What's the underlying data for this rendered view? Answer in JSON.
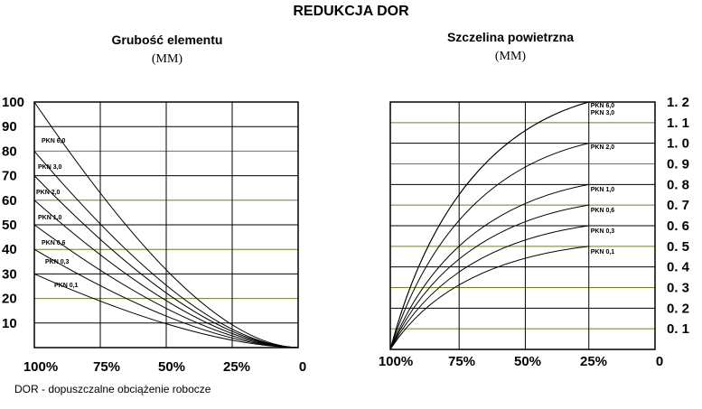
{
  "title": "REDUKCJA DOR",
  "caption": "DOR - dopuszczalne obciążenie robocze",
  "chart_data": [
    {
      "type": "line",
      "title": "Grubość elementu",
      "unit": "(MM)",
      "x_ticks": [
        "100%",
        "75%",
        "50%",
        "25%",
        "0"
      ],
      "y_ticks": [
        "100",
        "90",
        "80",
        "70",
        "60",
        "50",
        "40",
        "30",
        "20",
        "10"
      ],
      "xlim": [
        100,
        0
      ],
      "ylim": [
        0,
        100
      ],
      "grid": true,
      "series": [
        {
          "name": "PKN 6,0",
          "x": [
            100,
            0
          ],
          "y": [
            100,
            0
          ]
        },
        {
          "name": "PKN 3,0",
          "x": [
            100,
            0
          ],
          "y": [
            80,
            0
          ]
        },
        {
          "name": "PKN 2,0",
          "x": [
            100,
            0
          ],
          "y": [
            70,
            0
          ]
        },
        {
          "name": "PKN 1,0",
          "x": [
            100,
            0
          ],
          "y": [
            60,
            0
          ]
        },
        {
          "name": "PKN 0,6",
          "x": [
            100,
            0
          ],
          "y": [
            50,
            0
          ]
        },
        {
          "name": "PKN 0,3",
          "x": [
            100,
            0
          ],
          "y": [
            40,
            0
          ]
        },
        {
          "name": "PKN 0,1",
          "x": [
            100,
            0
          ],
          "y": [
            30,
            0
          ]
        }
      ]
    },
    {
      "type": "line",
      "title": "Szczelina powietrzna",
      "unit": "(MM)",
      "x_ticks": [
        "100%",
        "75%",
        "50%",
        "25%",
        "0"
      ],
      "y_ticks": [
        "1. 2",
        "1. 1",
        "1. 0",
        "0. 9",
        "0. 8",
        "0. 7",
        "0. 6",
        "0. 5",
        "0. 4",
        "0. 3",
        "0. 2",
        "0. 1"
      ],
      "xlim": [
        100,
        0
      ],
      "ylim": [
        0,
        1.2
      ],
      "grid": true,
      "series": [
        {
          "name": "PKN 6,0",
          "x": [
            100,
            25
          ],
          "y": [
            0,
            1.2
          ]
        },
        {
          "name": "PKN 3,0",
          "x": [
            100,
            25
          ],
          "y": [
            0,
            1.2
          ]
        },
        {
          "name": "PKN 2,0",
          "x": [
            100,
            25
          ],
          "y": [
            0,
            1.0
          ]
        },
        {
          "name": "PKN 1,0",
          "x": [
            100,
            25
          ],
          "y": [
            0,
            0.8
          ]
        },
        {
          "name": "PKN 0,6",
          "x": [
            100,
            25
          ],
          "y": [
            0,
            0.7
          ]
        },
        {
          "name": "PKN 0,3",
          "x": [
            100,
            25
          ],
          "y": [
            0,
            0.6
          ]
        },
        {
          "name": "PKN 0,1",
          "x": [
            100,
            25
          ],
          "y": [
            0,
            0.5
          ]
        }
      ]
    }
  ]
}
